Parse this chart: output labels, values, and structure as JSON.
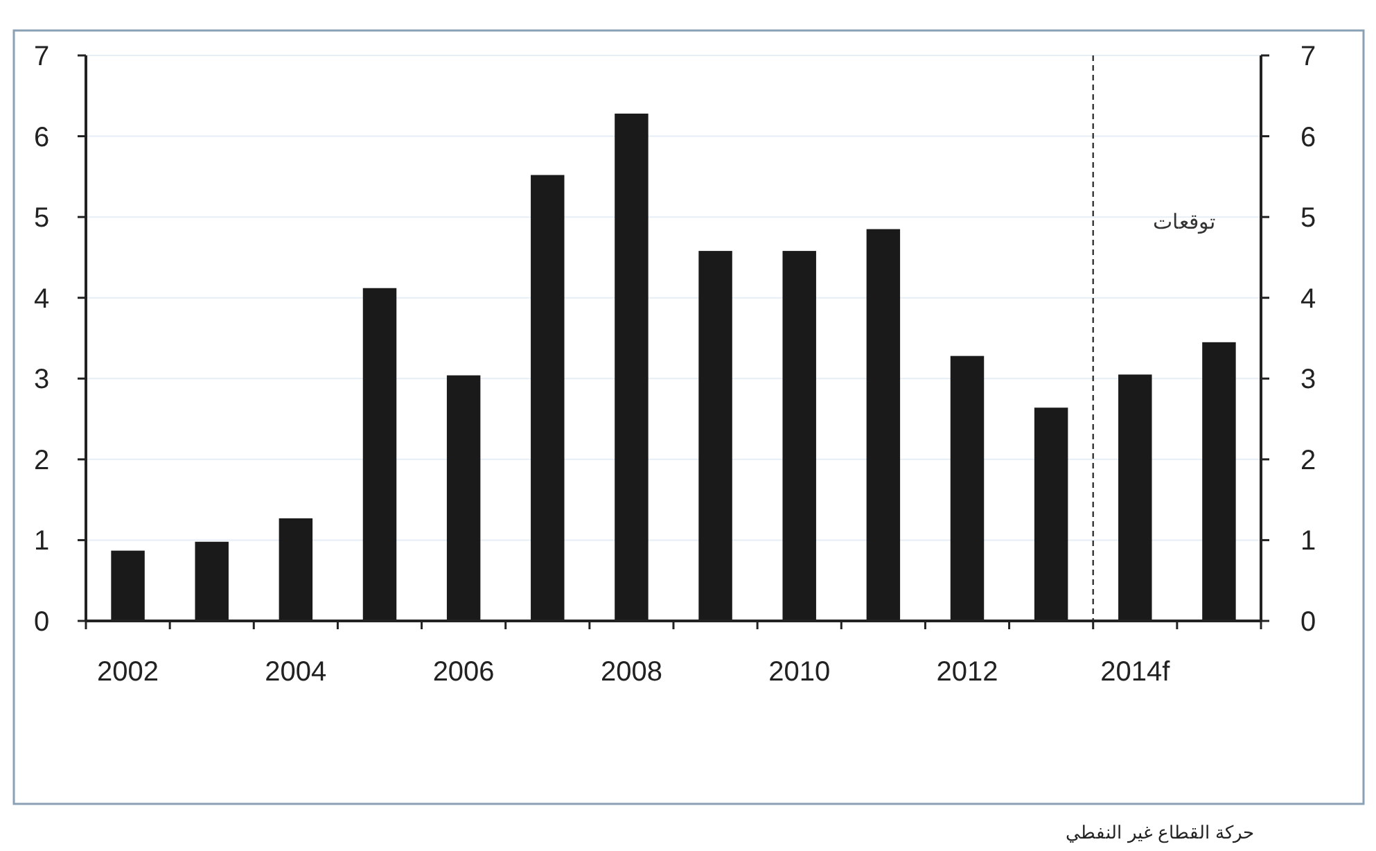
{
  "chart_data": {
    "type": "bar",
    "x": [
      2002,
      2003,
      2004,
      2005,
      2006,
      2007,
      2008,
      2009,
      2010,
      2011,
      2012,
      2013,
      2014,
      2015
    ],
    "values": [
      0.87,
      0.98,
      1.27,
      4.12,
      3.04,
      5.52,
      6.28,
      4.58,
      4.58,
      4.85,
      3.28,
      2.64,
      3.05,
      3.45
    ],
    "color": "#1a1a1a",
    "xlim": [
      2001.5,
      2015.5
    ],
    "xticks": [
      {
        "value": 2001.5,
        "label": null
      },
      2002,
      {
        "value": 2002.5,
        "label": null
      },
      {
        "value": 2003.5,
        "label": null
      },
      2004,
      {
        "value": 2004.5,
        "label": null
      },
      {
        "value": 2005.5,
        "label": null
      },
      2006,
      {
        "value": 2006.5,
        "label": null
      },
      {
        "value": 2007.5,
        "label": null
      },
      2008,
      {
        "value": 2008.5,
        "label": null
      },
      {
        "value": 2009.5,
        "label": null
      },
      2010,
      {
        "value": 2010.5,
        "label": null
      },
      {
        "value": 2011.5,
        "label": null
      },
      2012,
      {
        "value": 2012.5,
        "label": null
      },
      {
        "value": 2013.5,
        "label": null
      },
      {
        "value": 2014,
        "label": "2014f"
      },
      {
        "value": 2014.5,
        "label": null
      },
      {
        "value": 2015.5,
        "label": null
      }
    ],
    "ylim": [
      0,
      7
    ],
    "yticks": [
      0,
      1,
      2,
      3,
      4,
      5,
      6,
      7
    ],
    "y2lim": [
      0,
      7
    ],
    "y2ticks": [
      0,
      1,
      2,
      3,
      4,
      5,
      6,
      7
    ],
    "grid": "y",
    "ref_lines": [
      {
        "axis": "x",
        "value": 2013.5,
        "label": "توقعات",
        "line_style": "dashed",
        "color": "#333333"
      }
    ],
    "annotations": [
      "حركة القطاع غير النفطي"
    ]
  }
}
